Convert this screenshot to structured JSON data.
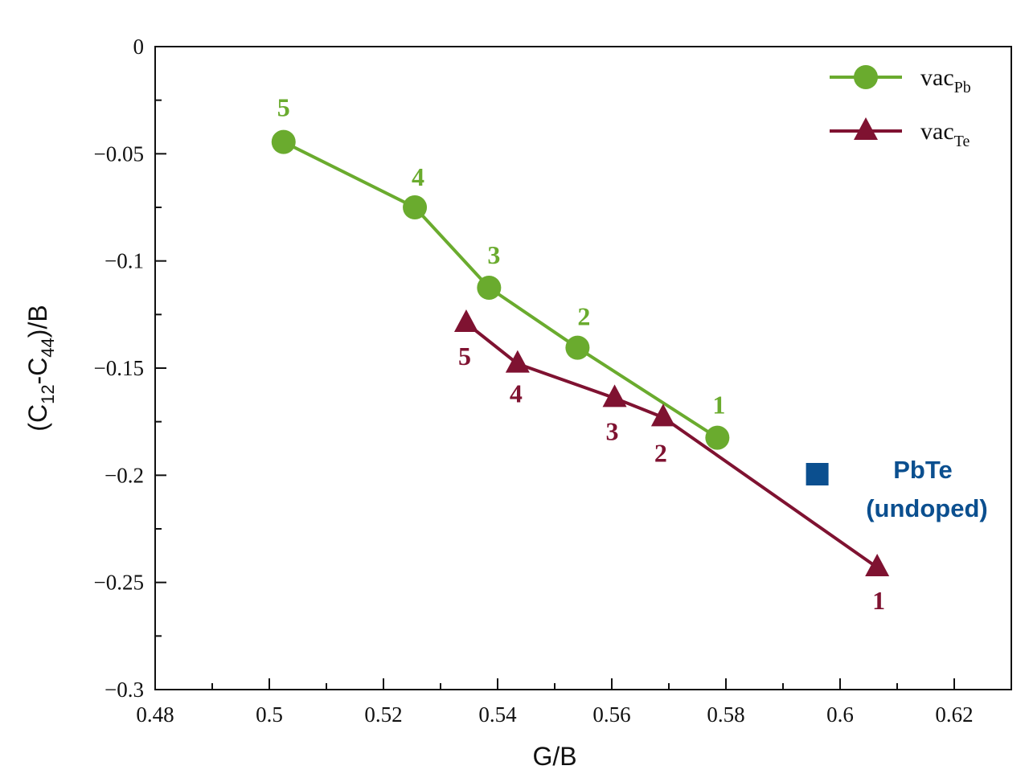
{
  "chart_data": {
    "type": "line",
    "title": "",
    "xlabel": "G/B",
    "ylabel": {
      "base": "(C",
      "sub1": "12",
      "mid": "-C",
      "sub2": "44",
      "end": ")/B"
    },
    "xlim": [
      0.48,
      0.63
    ],
    "ylim": [
      -0.3,
      0
    ],
    "x_ticks": [
      0.48,
      0.5,
      0.52,
      0.54,
      0.56,
      0.58,
      0.6,
      0.62
    ],
    "x_tick_labels": [
      "0.48",
      "0.5",
      "0.52",
      "0.54",
      "0.56",
      "0.58",
      "0.6",
      "0.62"
    ],
    "y_ticks": [
      0,
      -0.05,
      -0.1,
      -0.15,
      -0.2,
      -0.25,
      -0.3
    ],
    "y_tick_labels": [
      "0",
      "−0.05",
      "−0.1",
      "−0.15",
      "−0.2",
      "−0.25",
      "−0.3"
    ],
    "grid": false,
    "legend_position": "top-right",
    "series": [
      {
        "name": "vacPb",
        "legend_main": "vac",
        "legend_sub": "Pb",
        "marker": "circle",
        "color": "#6aab2e",
        "points": [
          {
            "x": 0.5025,
            "y": -0.0445,
            "label": "5"
          },
          {
            "x": 0.5255,
            "y": -0.075,
            "label": "4"
          },
          {
            "x": 0.5385,
            "y": -0.1125,
            "label": "3"
          },
          {
            "x": 0.554,
            "y": -0.1405,
            "label": "2"
          },
          {
            "x": 0.5785,
            "y": -0.1825,
            "label": "1"
          }
        ]
      },
      {
        "name": "vacTe",
        "legend_main": "vac",
        "legend_sub": "Te",
        "marker": "triangle",
        "color": "#7f1231",
        "points": [
          {
            "x": 0.5345,
            "y": -0.129,
            "label": "5"
          },
          {
            "x": 0.5435,
            "y": -0.148,
            "label": "4"
          },
          {
            "x": 0.5605,
            "y": -0.164,
            "label": "3"
          },
          {
            "x": 0.569,
            "y": -0.173,
            "label": "2"
          },
          {
            "x": 0.6065,
            "y": -0.243,
            "label": "1"
          }
        ]
      }
    ],
    "reference_point": {
      "x": 0.596,
      "y": -0.1995,
      "marker": "square",
      "color": "#0b4f8f",
      "label_line1": "PbTe",
      "label_line2": "(undoped)"
    }
  }
}
